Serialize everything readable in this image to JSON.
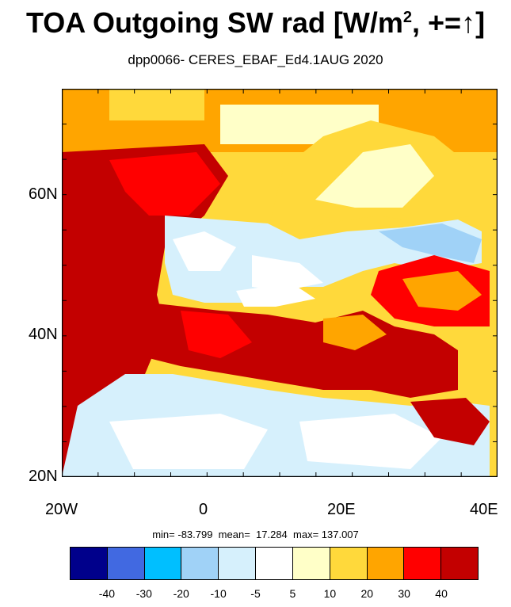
{
  "title": {
    "main": "TOA Outgoing SW rad [W/m",
    "sup": "2",
    "tail": ", +=↑]"
  },
  "subtitle": "dpp0066- CERES_EBAF_Ed4.1AUG 2020",
  "axes": {
    "y_labels": [
      "60N",
      "40N",
      "20N"
    ],
    "x_labels": [
      "20W",
      "0",
      "20E",
      "40E"
    ],
    "lat_range": [
      20,
      75
    ],
    "lon_range": [
      -20,
      40
    ]
  },
  "stats": {
    "text": "min= -83.799  mean=  17.284  max= 137.007",
    "min": -83.799,
    "mean": 17.284,
    "max": 137.007
  },
  "colorbar": {
    "colors": [
      "#00008b",
      "#4169e1",
      "#00bfff",
      "#a0d2f7",
      "#d6f0fc",
      "#ffffff",
      "#ffffc8",
      "#ffd93b",
      "#ffa500",
      "#ff0000",
      "#c30000"
    ],
    "labels": [
      "-40",
      "-30",
      "-20",
      "-10",
      "-5",
      "5",
      "10",
      "20",
      "30",
      "40"
    ]
  }
}
